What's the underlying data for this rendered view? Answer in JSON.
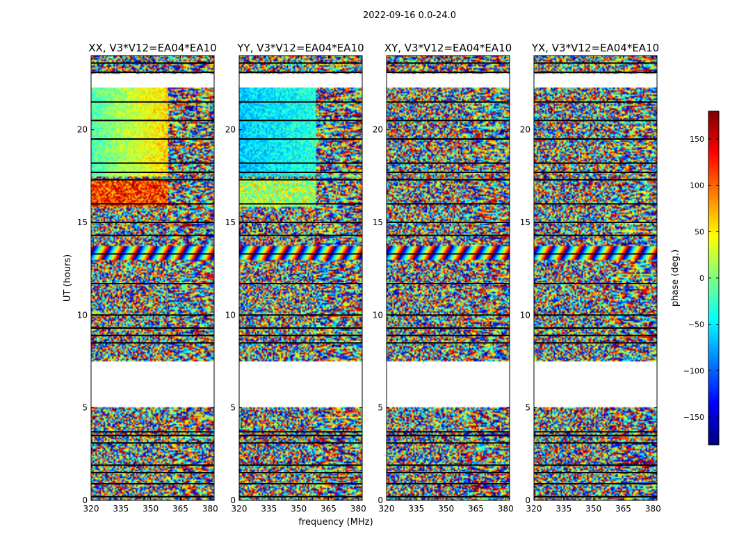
{
  "chart_data": {
    "type": "heatmap",
    "suptitle": "2022-09-16 0.0-24.0",
    "xlabel": "frequency (MHz)",
    "ylabel": "UT (hours)",
    "xlim": [
      320,
      382
    ],
    "ylim": [
      0,
      24
    ],
    "xticks": [
      320,
      335,
      350,
      365,
      380
    ],
    "yticks": [
      0,
      5,
      10,
      15,
      20
    ],
    "panels": [
      {
        "title": "XX, V3*V12=EA04*EA10",
        "pol": "XX"
      },
      {
        "title": "YY, V3*V12=EA04*EA10",
        "pol": "YY"
      },
      {
        "title": "XY, V3*V12=EA04*EA10",
        "pol": "XY"
      },
      {
        "title": "YX, V3*V12=EA04*EA10",
        "pol": "YX"
      }
    ],
    "colorbar": {
      "label": "phase (deg.)",
      "range": [
        -180,
        180
      ],
      "ticks": [
        -150,
        -100,
        -50,
        0,
        50,
        100,
        150
      ],
      "tick_labels": [
        "−150",
        "−100",
        "−50",
        "0",
        "50",
        "100",
        "150"
      ],
      "colormap": [
        "#00007f",
        "#0000ff",
        "#007fff",
        "#00ffff",
        "#7fff7f",
        "#ffff00",
        "#ff7f00",
        "#ff0000",
        "#7f0000"
      ]
    },
    "data_gaps_ut": [
      [
        5.0,
        7.5
      ],
      [
        22.3,
        23.0
      ]
    ],
    "flagged_rows_ut": [
      0.2,
      0.9,
      1.5,
      1.9,
      3.1,
      3.5,
      3.7,
      8.5,
      8.9,
      9.3,
      10.0,
      11.7,
      13.3,
      14.3,
      15.0,
      16.0,
      17.3,
      17.7,
      18.2,
      19.5,
      20.5,
      21.5,
      23.1,
      23.6
    ]
  }
}
